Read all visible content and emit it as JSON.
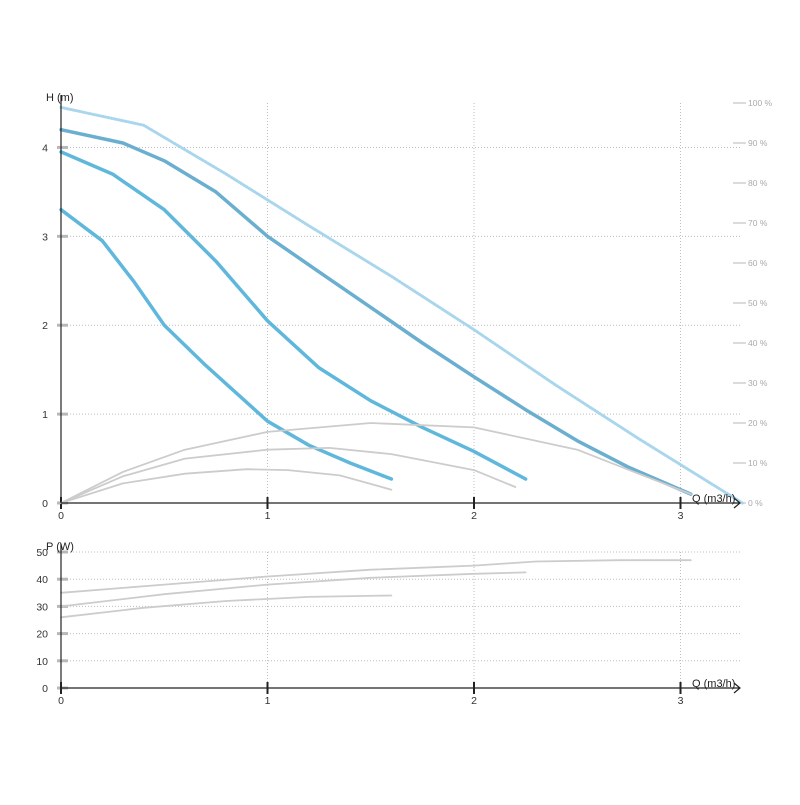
{
  "chart_data": [
    {
      "type": "line",
      "ylabel": "H (m)",
      "xlabel": "Q (m3/h)",
      "xlim": [
        0,
        3.3
      ],
      "ylim": [
        0,
        4.5
      ],
      "x_ticks": [
        "0",
        "1",
        "2",
        "3"
      ],
      "y_ticks": [
        "0",
        "1",
        "2",
        "3",
        "4"
      ],
      "grid": true,
      "secondary_axis": {
        "position": "right",
        "ticks": [
          "0 %",
          "10 %",
          "20 %",
          "30 %",
          "40 %",
          "50 %",
          "60 %",
          "70 %",
          "80 %",
          "90 %",
          "100 %"
        ]
      },
      "series": [
        {
          "style": "thick",
          "color": "#6aaed0",
          "points": [
            [
              0,
              4.2
            ],
            [
              0.3,
              4.05
            ],
            [
              0.5,
              3.85
            ],
            [
              0.75,
              3.5
            ],
            [
              1,
              3.0
            ],
            [
              1.25,
              2.6
            ],
            [
              1.5,
              2.2
            ],
            [
              1.75,
              1.8
            ],
            [
              2,
              1.42
            ],
            [
              2.25,
              1.05
            ],
            [
              2.5,
              0.7
            ],
            [
              2.75,
              0.4
            ],
            [
              3.05,
              0.1
            ]
          ]
        },
        {
          "style": "thick",
          "color": "#5fb7dc",
          "points": [
            [
              0,
              3.95
            ],
            [
              0.25,
              3.7
            ],
            [
              0.5,
              3.3
            ],
            [
              0.75,
              2.72
            ],
            [
              1,
              2.05
            ],
            [
              1.25,
              1.52
            ],
            [
              1.5,
              1.15
            ],
            [
              1.75,
              0.85
            ],
            [
              2,
              0.58
            ],
            [
              2.25,
              0.27
            ]
          ]
        },
        {
          "style": "thick",
          "color": "#5fb7dc",
          "points": [
            [
              0,
              3.3
            ],
            [
              0.2,
              2.95
            ],
            [
              0.35,
              2.5
            ],
            [
              0.5,
              2.0
            ],
            [
              0.7,
              1.55
            ],
            [
              1,
              0.92
            ],
            [
              1.2,
              0.65
            ],
            [
              1.4,
              0.45
            ],
            [
              1.6,
              0.27
            ]
          ]
        },
        {
          "style": "dotted",
          "color": "#a9d6ec",
          "points": [
            [
              0,
              4.45
            ],
            [
              0.4,
              4.25
            ],
            [
              0.8,
              3.7
            ],
            [
              1.2,
              3.12
            ],
            [
              1.6,
              2.55
            ],
            [
              2,
              1.95
            ],
            [
              2.4,
              1.32
            ],
            [
              2.8,
              0.72
            ],
            [
              3.3,
              0.0
            ]
          ]
        },
        {
          "style": "thin",
          "color": "#cccccc",
          "points": [
            [
              0,
              0
            ],
            [
              0.3,
              0.35
            ],
            [
              0.6,
              0.6
            ],
            [
              1,
              0.8
            ],
            [
              1.5,
              0.9
            ],
            [
              2,
              0.85
            ],
            [
              2.5,
              0.6
            ],
            [
              3.05,
              0.1
            ]
          ]
        },
        {
          "style": "thin",
          "color": "#cccccc",
          "points": [
            [
              0,
              0
            ],
            [
              0.3,
              0.3
            ],
            [
              0.6,
              0.5
            ],
            [
              1,
              0.6
            ],
            [
              1.3,
              0.62
            ],
            [
              1.6,
              0.55
            ],
            [
              2,
              0.37
            ],
            [
              2.2,
              0.18
            ]
          ]
        },
        {
          "style": "thin",
          "color": "#cccccc",
          "points": [
            [
              0,
              0
            ],
            [
              0.3,
              0.22
            ],
            [
              0.6,
              0.33
            ],
            [
              0.9,
              0.38
            ],
            [
              1.1,
              0.37
            ],
            [
              1.35,
              0.31
            ],
            [
              1.6,
              0.15
            ]
          ]
        }
      ]
    },
    {
      "type": "line",
      "ylabel": "P (W)",
      "xlabel": "Q (m3/h)",
      "xlim": [
        0,
        3.3
      ],
      "ylim": [
        0,
        50
      ],
      "x_ticks": [
        "0",
        "1",
        "2",
        "3"
      ],
      "y_ticks": [
        "0",
        "10",
        "20",
        "30",
        "40",
        "50"
      ],
      "grid": true,
      "series": [
        {
          "style": "thin",
          "color": "#cccccc",
          "points": [
            [
              0,
              35
            ],
            [
              0.5,
              38
            ],
            [
              1,
              41
            ],
            [
              1.5,
              43.5
            ],
            [
              2,
              45
            ],
            [
              2.3,
              46.5
            ],
            [
              2.7,
              47
            ],
            [
              3.05,
              47
            ]
          ]
        },
        {
          "style": "thin",
          "color": "#cccccc",
          "points": [
            [
              0,
              30
            ],
            [
              0.5,
              34.5
            ],
            [
              1,
              38
            ],
            [
              1.5,
              40.5
            ],
            [
              2,
              42
            ],
            [
              2.25,
              42.5
            ]
          ]
        },
        {
          "style": "thin",
          "color": "#cccccc",
          "points": [
            [
              0,
              26
            ],
            [
              0.4,
              29.5
            ],
            [
              0.8,
              32
            ],
            [
              1.2,
              33.5
            ],
            [
              1.6,
              34
            ]
          ]
        }
      ]
    }
  ]
}
